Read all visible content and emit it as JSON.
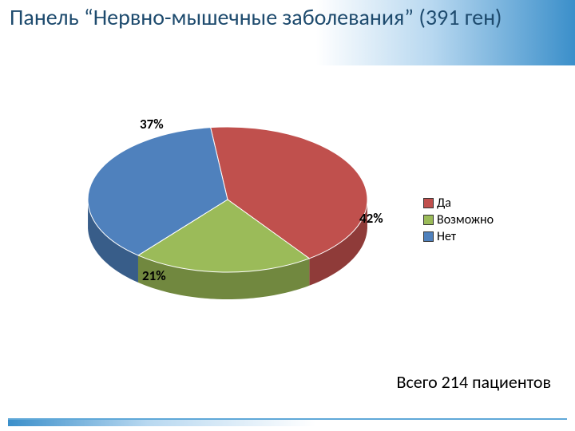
{
  "title": "Панель “Нервно-мышечные заболевания” (391 ген)",
  "footer": "Всего 214 пациентов",
  "chart": {
    "type": "pie-3d",
    "background_color": "#ffffff",
    "title_color": "#1e4b6e",
    "title_fontsize": 28,
    "label_fontsize": 17,
    "legend_fontsize": 16,
    "slices": [
      {
        "name": "Да",
        "value": 42,
        "label": "42%",
        "color": "#c0504d",
        "side_color": "#8f3b39"
      },
      {
        "name": "Возможно",
        "value": 21,
        "label": "21%",
        "color": "#9bbb59",
        "side_color": "#71883f"
      },
      {
        "name": "Нет",
        "value": 37,
        "label": "37%",
        "color": "#4f81bd",
        "side_color": "#385d89"
      }
    ],
    "tilt_ratio": 0.52,
    "depth": 34
  },
  "legend": {
    "items": [
      {
        "label": "Да",
        "color": "#c0504d"
      },
      {
        "label": "Возможно",
        "color": "#9bbb59"
      },
      {
        "label": "Нет",
        "color": "#4f81bd"
      }
    ]
  }
}
